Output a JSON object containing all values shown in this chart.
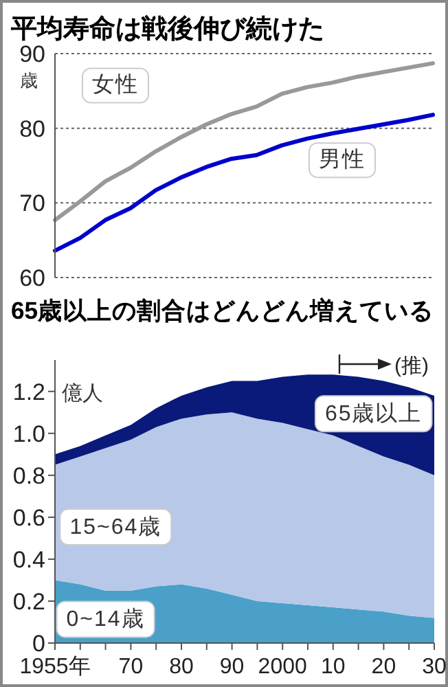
{
  "chart_data": [
    {
      "type": "line",
      "title": "平均寿命は戦後伸び続けた",
      "ylabel": "歳",
      "x": [
        1955,
        1960,
        1965,
        1970,
        1975,
        1980,
        1985,
        1990,
        1995,
        2000,
        2005,
        2010,
        2015,
        2020,
        2025,
        2030
      ],
      "xlim": [
        1955,
        2030
      ],
      "ylim": [
        60,
        90
      ],
      "yticks": [
        60,
        70,
        80,
        90
      ],
      "grid": "y",
      "tick_labels": "y",
      "series": [
        {
          "name": "女性",
          "color": "#999999",
          "values": [
            67.7,
            70.2,
            72.9,
            74.7,
            76.9,
            78.8,
            80.5,
            81.9,
            82.9,
            84.6,
            85.5,
            86.1,
            86.9,
            87.5,
            88.1,
            88.7
          ]
        },
        {
          "name": "男性",
          "color": "#0000cc",
          "values": [
            63.6,
            65.3,
            67.7,
            69.3,
            71.7,
            73.4,
            74.8,
            75.9,
            76.4,
            77.7,
            78.6,
            79.3,
            79.9,
            80.5,
            81.1,
            81.8
          ]
        }
      ]
    },
    {
      "type": "area",
      "stacked": true,
      "title": "65歳以上の割合はどんどん増えている",
      "ylabel": "億人",
      "x": [
        1955,
        1960,
        1965,
        1970,
        1975,
        1980,
        1985,
        1990,
        1995,
        2000,
        2005,
        2010,
        2015,
        2020,
        2025,
        2030
      ],
      "xlim": [
        1955,
        2030
      ],
      "ylim": [
        0,
        1.35
      ],
      "xticks": [
        {
          "value": 1955,
          "label": "1955年"
        },
        {
          "value": 1960,
          "label": null
        },
        {
          "value": 1965,
          "label": null
        },
        {
          "value": 1970,
          "label": "70"
        },
        {
          "value": 1975,
          "label": null
        },
        {
          "value": 1980,
          "label": "80"
        },
        {
          "value": 1985,
          "label": null
        },
        {
          "value": 1990,
          "label": "90"
        },
        {
          "value": 1995,
          "label": null
        },
        2000,
        {
          "value": 2005,
          "label": null
        },
        {
          "value": 2010,
          "label": "10"
        },
        {
          "value": 2015,
          "label": null
        },
        {
          "value": 2020,
          "label": "20"
        },
        {
          "value": 2025,
          "label": null
        },
        {
          "value": 2030,
          "label": "30"
        }
      ],
      "yticks": [
        0,
        0.2,
        0.4,
        0.6,
        0.8,
        {
          "value": 1,
          "label": "1.0"
        },
        1.2
      ],
      "annotations": [
        "(推)"
      ],
      "series": [
        {
          "name": "0~14歳",
          "color": "#4aa0c8",
          "values": [
            0.3,
            0.28,
            0.25,
            0.25,
            0.27,
            0.28,
            0.26,
            0.23,
            0.2,
            0.19,
            0.18,
            0.17,
            0.16,
            0.15,
            0.13,
            0.12
          ]
        },
        {
          "name": "15~64歳",
          "color": "#b8c8e8",
          "values": [
            0.55,
            0.61,
            0.68,
            0.72,
            0.76,
            0.79,
            0.83,
            0.87,
            0.87,
            0.86,
            0.84,
            0.82,
            0.78,
            0.74,
            0.72,
            0.68
          ]
        },
        {
          "name": "65歳以上",
          "color": "#0a1a7a",
          "values": [
            0.05,
            0.05,
            0.06,
            0.07,
            0.09,
            0.11,
            0.13,
            0.15,
            0.18,
            0.22,
            0.26,
            0.29,
            0.33,
            0.36,
            0.37,
            0.38
          ]
        }
      ]
    }
  ]
}
